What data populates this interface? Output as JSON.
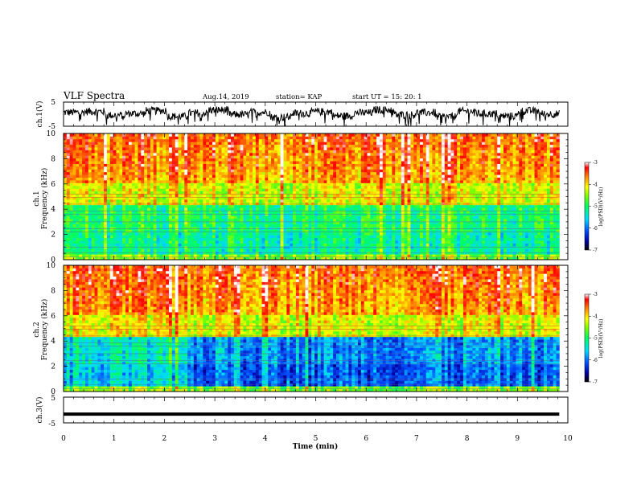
{
  "header": {
    "title": "VLF Spectra",
    "date": "Aug.14, 2019",
    "station": "station= KAP",
    "start": "start  UT =   15: 20: 1"
  },
  "chart_data": [
    {
      "type": "line",
      "name": "ch1-waveform",
      "ylabel": "ch.1(V)",
      "ylim": [
        -5,
        5
      ],
      "y_ticks": [
        "5",
        "-5"
      ],
      "x_range": [
        0,
        9.83
      ],
      "sample_values": [
        0.8,
        1.2,
        -0.5,
        0.3,
        1.6,
        -1.0,
        0.5,
        1.9,
        -0.2,
        0.9,
        -1.4,
        0.4,
        1.1,
        -0.8,
        0.6,
        2.0,
        -0.3,
        0.7,
        -1.2,
        1.3,
        0.2,
        -0.9,
        1.5,
        0.1
      ]
    },
    {
      "type": "heatmap",
      "name": "ch1-spectrogram",
      "ylabel_line1": "ch.1",
      "ylabel_line2": "Frequency  (kHz)",
      "ylim": [
        0,
        10
      ],
      "y_ticks": [
        "0",
        "2",
        "4",
        "6",
        "8",
        "10"
      ],
      "x_range": [
        0,
        9.83
      ],
      "colorbar": {
        "label": "log(PSD)(V²/Hz)",
        "range": [
          -7,
          -3
        ],
        "ticks": [
          "-3",
          "-4",
          "-5",
          "-6",
          "-7"
        ]
      }
    },
    {
      "type": "heatmap",
      "name": "ch2-spectrogram",
      "ylabel_line1": "ch.2",
      "ylabel_line2": "Frequency  (kHz)",
      "ylim": [
        0,
        10
      ],
      "y_ticks": [
        "0",
        "2",
        "4",
        "6",
        "8",
        "10"
      ],
      "x_range": [
        0,
        9.83
      ],
      "colorbar": {
        "label": "log(PSD)(V²/Hz)",
        "range": [
          -7,
          -3
        ],
        "ticks": [
          "-3",
          "-4",
          "-5",
          "-6",
          "-7"
        ]
      }
    },
    {
      "type": "line",
      "name": "ch3-waveform",
      "ylabel": "ch.3(V)",
      "ylim": [
        -5,
        5
      ],
      "y_ticks": [
        "5",
        "-5"
      ],
      "x_range": [
        0,
        9.83
      ],
      "constant_value": -1.6
    }
  ],
  "xaxis": {
    "label": "Time  (min)",
    "range": [
      0,
      10
    ],
    "ticks": [
      "0",
      "1",
      "2",
      "3",
      "4",
      "5",
      "6",
      "7",
      "8",
      "9",
      "10"
    ]
  }
}
